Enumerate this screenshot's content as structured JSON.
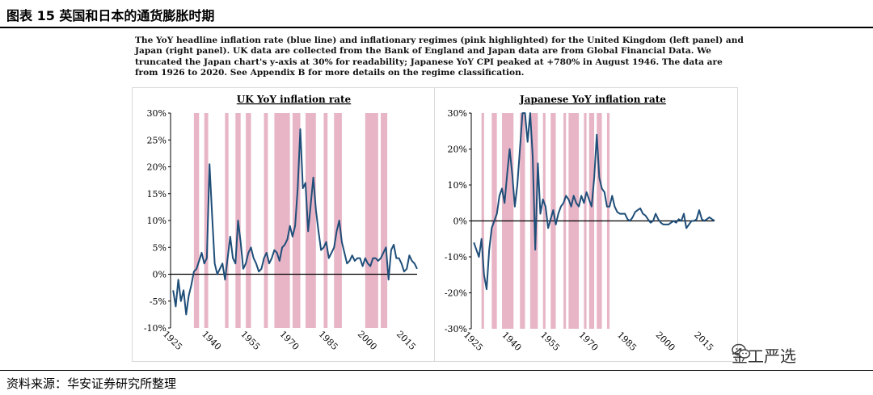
{
  "figure": {
    "title": "图表 15 英国和日本的通货膨胀时期",
    "caption": "The YoY headline inflation rate (blue line) and inflationary regimes (pink highlighted) for the United Kingdom (left panel) and Japan (right panel). UK data are collected from the Bank of England and Japan data are from Global Financial Data. We truncated the Japan chart's y-axis at 30% for readability; Japanese YoY CPI peaked at +780% in August 1946. The data are from 1926 to 2020. See Appendix B for more details on the regime classification.",
    "source": "资料来源：华安证券研究所整理",
    "watermark": "金工严选"
  },
  "colors": {
    "line": "#1f4e79",
    "regime": "#e7b5c6",
    "zero": "#000000"
  },
  "chart_data": [
    {
      "type": "line",
      "title": "UK YoY inflation rate",
      "xlim": [
        1925,
        2020
      ],
      "ylim": [
        -10,
        30
      ],
      "yticks": [
        -10,
        -5,
        0,
        5,
        10,
        15,
        20,
        25,
        30
      ],
      "ytick_labels": [
        "-10%",
        "-5%",
        "0%",
        "5%",
        "10%",
        "15%",
        "20%",
        "25%",
        "30%"
      ],
      "xticks": [
        1925,
        1940,
        1955,
        1970,
        1985,
        2000,
        2015
      ],
      "xtick_labels": [
        "1925",
        "1940",
        "1955",
        "1970",
        "1985",
        "2000",
        "2015"
      ],
      "regimes": [
        [
          1934,
          1936
        ],
        [
          1938,
          1939.5
        ],
        [
          1946,
          1947.3
        ],
        [
          1950,
          1952
        ],
        [
          1954,
          1956
        ],
        [
          1961,
          1962.5
        ],
        [
          1965,
          1971
        ],
        [
          1972,
          1975
        ],
        [
          1977,
          1981
        ],
        [
          1984,
          1985.5
        ],
        [
          1988,
          1991
        ],
        [
          2000,
          2005
        ],
        [
          2006,
          2008.5
        ]
      ],
      "series": [
        {
          "name": "UK YoY CPI",
          "points": [
            [
              1926,
              -3
            ],
            [
              1927,
              -6
            ],
            [
              1928,
              -1
            ],
            [
              1929,
              -5
            ],
            [
              1930,
              -3
            ],
            [
              1931,
              -7.5
            ],
            [
              1932,
              -4
            ],
            [
              1933,
              -2
            ],
            [
              1934,
              0.5
            ],
            [
              1935,
              1
            ],
            [
              1936,
              2.5
            ],
            [
              1937,
              4
            ],
            [
              1938,
              2
            ],
            [
              1939,
              3
            ],
            [
              1940,
              20.5
            ],
            [
              1941,
              11
            ],
            [
              1942,
              2
            ],
            [
              1943,
              0
            ],
            [
              1944,
              1
            ],
            [
              1945,
              2
            ],
            [
              1946,
              -1
            ],
            [
              1947,
              3
            ],
            [
              1948,
              7
            ],
            [
              1949,
              3
            ],
            [
              1950,
              2
            ],
            [
              1951,
              10
            ],
            [
              1952,
              6
            ],
            [
              1953,
              1
            ],
            [
              1954,
              2
            ],
            [
              1955,
              4
            ],
            [
              1956,
              5
            ],
            [
              1957,
              3
            ],
            [
              1958,
              2
            ],
            [
              1959,
              0.5
            ],
            [
              1960,
              1
            ],
            [
              1961,
              3
            ],
            [
              1962,
              4
            ],
            [
              1963,
              2
            ],
            [
              1964,
              3
            ],
            [
              1965,
              4.5
            ],
            [
              1966,
              4
            ],
            [
              1967,
              2.5
            ],
            [
              1968,
              5
            ],
            [
              1969,
              5.5
            ],
            [
              1970,
              6.5
            ],
            [
              1971,
              9
            ],
            [
              1972,
              7
            ],
            [
              1973,
              9
            ],
            [
              1974,
              16
            ],
            [
              1975,
              27
            ],
            [
              1976,
              16
            ],
            [
              1977,
              17
            ],
            [
              1978,
              8
            ],
            [
              1979,
              13
            ],
            [
              1980,
              18
            ],
            [
              1981,
              12
            ],
            [
              1982,
              8
            ],
            [
              1983,
              4.5
            ],
            [
              1984,
              5
            ],
            [
              1985,
              6
            ],
            [
              1986,
              3
            ],
            [
              1987,
              4
            ],
            [
              1988,
              5
            ],
            [
              1989,
              8
            ],
            [
              1990,
              10
            ],
            [
              1991,
              6
            ],
            [
              1992,
              4
            ],
            [
              1993,
              2
            ],
            [
              1994,
              2.5
            ],
            [
              1995,
              3.5
            ],
            [
              1996,
              2.5
            ],
            [
              1997,
              3
            ],
            [
              1998,
              3
            ],
            [
              1999,
              1.5
            ],
            [
              2000,
              3
            ],
            [
              2001,
              2
            ],
            [
              2002,
              1.5
            ],
            [
              2003,
              3
            ],
            [
              2004,
              3
            ],
            [
              2005,
              2.5
            ],
            [
              2006,
              3
            ],
            [
              2007,
              4
            ],
            [
              2008,
              5
            ],
            [
              2009,
              -1
            ],
            [
              2010,
              4.5
            ],
            [
              2011,
              5.5
            ],
            [
              2012,
              3
            ],
            [
              2013,
              3
            ],
            [
              2014,
              2
            ],
            [
              2015,
              0.5
            ],
            [
              2016,
              1
            ],
            [
              2017,
              3.5
            ],
            [
              2018,
              2.5
            ],
            [
              2019,
              2
            ],
            [
              2020,
              1
            ]
          ]
        }
      ]
    },
    {
      "type": "line",
      "title": "Japanese YoY inflation rate",
      "xlim": [
        1925,
        2020
      ],
      "ylim": [
        -30,
        30
      ],
      "yticks": [
        -30,
        -20,
        -10,
        0,
        10,
        20,
        30
      ],
      "ytick_labels": [
        "-30%",
        "-20%",
        "-10%",
        "0%",
        "10%",
        "20%",
        "30%"
      ],
      "xticks": [
        1925,
        1940,
        1955,
        1970,
        1985,
        2000,
        2015
      ],
      "xtick_labels": [
        "1925",
        "1940",
        "1955",
        "1970",
        "1985",
        "2000",
        "2015"
      ],
      "regimes": [
        [
          1929,
          1930
        ],
        [
          1933,
          1935
        ],
        [
          1937,
          1941.5
        ],
        [
          1944,
          1946
        ],
        [
          1948,
          1951
        ],
        [
          1953,
          1954
        ],
        [
          1956,
          1958
        ],
        [
          1961,
          1962
        ],
        [
          1963,
          1967
        ],
        [
          1969,
          1970
        ],
        [
          1971,
          1973
        ],
        [
          1974,
          1976
        ],
        [
          1978,
          1979
        ]
      ],
      "series": [
        {
          "name": "Japan YoY CPI",
          "points": [
            [
              1926,
              -6
            ],
            [
              1927,
              -8
            ],
            [
              1928,
              -10
            ],
            [
              1929,
              -5
            ],
            [
              1930,
              -15
            ],
            [
              1931,
              -19
            ],
            [
              1932,
              -8
            ],
            [
              1933,
              -2
            ],
            [
              1934,
              0
            ],
            [
              1935,
              2
            ],
            [
              1936,
              7
            ],
            [
              1937,
              9
            ],
            [
              1938,
              5
            ],
            [
              1939,
              13
            ],
            [
              1940,
              20
            ],
            [
              1941,
              13
            ],
            [
              1942,
              4
            ],
            [
              1943,
              10
            ],
            [
              1944,
              20
            ],
            [
              1945,
              30
            ],
            [
              1946,
              30
            ],
            [
              1947,
              22
            ],
            [
              1948,
              30
            ],
            [
              1949,
              18
            ],
            [
              1950,
              -8
            ],
            [
              1951,
              16
            ],
            [
              1952,
              2
            ],
            [
              1953,
              6
            ],
            [
              1954,
              4
            ],
            [
              1955,
              -2
            ],
            [
              1956,
              0.5
            ],
            [
              1957,
              3
            ],
            [
              1958,
              -1
            ],
            [
              1959,
              2
            ],
            [
              1960,
              4
            ],
            [
              1961,
              5
            ],
            [
              1962,
              7
            ],
            [
              1963,
              6
            ],
            [
              1964,
              4
            ],
            [
              1965,
              7
            ],
            [
              1966,
              5
            ],
            [
              1967,
              4
            ],
            [
              1968,
              7
            ],
            [
              1969,
              5
            ],
            [
              1970,
              8
            ],
            [
              1971,
              6
            ],
            [
              1972,
              4
            ],
            [
              1973,
              12
            ],
            [
              1974,
              24
            ],
            [
              1975,
              12
            ],
            [
              1976,
              9
            ],
            [
              1977,
              8
            ],
            [
              1978,
              4
            ],
            [
              1979,
              4
            ],
            [
              1980,
              7
            ],
            [
              1981,
              4
            ],
            [
              1982,
              2.5
            ],
            [
              1983,
              2
            ],
            [
              1984,
              2
            ],
            [
              1985,
              2
            ],
            [
              1986,
              0.5
            ],
            [
              1987,
              0
            ],
            [
              1988,
              1
            ],
            [
              1989,
              2.5
            ],
            [
              1990,
              3
            ],
            [
              1991,
              3.5
            ],
            [
              1992,
              2
            ],
            [
              1993,
              1.5
            ],
            [
              1994,
              0.5
            ],
            [
              1995,
              -0.5
            ],
            [
              1996,
              0
            ],
            [
              1997,
              2
            ],
            [
              1998,
              0.5
            ],
            [
              1999,
              -0.5
            ],
            [
              2000,
              -1
            ],
            [
              2001,
              -1
            ],
            [
              2002,
              -1
            ],
            [
              2003,
              -0.5
            ],
            [
              2004,
              0
            ],
            [
              2005,
              -0.5
            ],
            [
              2006,
              0.5
            ],
            [
              2007,
              0
            ],
            [
              2008,
              2
            ],
            [
              2009,
              -2
            ],
            [
              2010,
              -1
            ],
            [
              2011,
              0
            ],
            [
              2012,
              0
            ],
            [
              2013,
              0.5
            ],
            [
              2014,
              3
            ],
            [
              2015,
              0.5
            ],
            [
              2016,
              0
            ],
            [
              2017,
              0.5
            ],
            [
              2018,
              1
            ],
            [
              2019,
              0.5
            ],
            [
              2020,
              0
            ]
          ]
        }
      ]
    }
  ]
}
